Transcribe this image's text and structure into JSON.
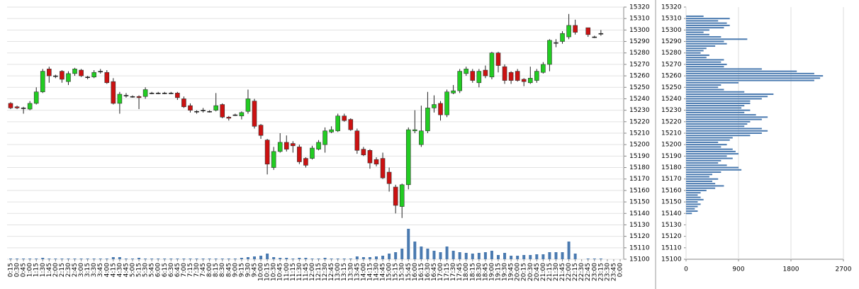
{
  "chart_data": [
    {
      "type": "candlestick",
      "categories": [
        "0:15",
        "0:30",
        "0:45",
        "1:00",
        "1:15",
        "1:30",
        "1:45",
        "2:00",
        "2:15",
        "2:30",
        "2:45",
        "3:00",
        "3:15",
        "3:30",
        "3:45",
        "4:00",
        "4:15",
        "4:30",
        "4:45",
        "5:00",
        "5:15",
        "5:30",
        "5:45",
        "6:00",
        "6:15",
        "6:30",
        "6:45",
        "7:00",
        "7:15",
        "7:30",
        "7:45",
        "8:00",
        "8:15",
        "8:30",
        "8:45",
        "9:00",
        "9:15",
        "9:30",
        "9:45",
        "10:00",
        "10:15",
        "10:30",
        "10:45",
        "11:00",
        "11:15",
        "11:30",
        "11:45",
        "12:00",
        "12:15",
        "12:30",
        "12:45",
        "13:00",
        "13:15",
        "13:30",
        "13:45",
        "14:00",
        "14:15",
        "14:30",
        "14:45",
        "15:00",
        "15:15",
        "15:30",
        "15:45",
        "16:00",
        "16:15",
        "16:30",
        "16:45",
        "17:00",
        "17:15",
        "17:30",
        "17:45",
        "18:00",
        "18:15",
        "18:30",
        "18:45",
        "19:00",
        "19:15",
        "19:30",
        "19:45",
        "20:00",
        "20:15",
        "20:30",
        "20:45",
        "21:00",
        "21:15",
        "21:30",
        "21:45",
        "22:00",
        "22:15",
        "22:30",
        "22:45",
        "23:00",
        "23:15",
        "23:30",
        "23:45",
        "0:00"
      ],
      "open": [
        15236,
        15233,
        15232,
        15231,
        15236,
        15246,
        15266,
        15260,
        15264,
        15255,
        15262,
        15265,
        15259,
        15259,
        15264,
        15263,
        15255,
        15236,
        15243,
        15242,
        15242,
        15242,
        15245,
        15245,
        15245,
        15245,
        15245,
        15240,
        15234,
        15229,
        15230,
        15229,
        15230,
        15235,
        15224,
        15226,
        15225,
        15229,
        15238,
        15217,
        15204,
        15180,
        15194,
        15202,
        15201,
        15198,
        15188,
        15188,
        15196,
        15200,
        15211,
        15212,
        15225,
        15222,
        15212,
        15196,
        15195,
        15187,
        15188,
        15176,
        15163,
        15146,
        15165,
        15212,
        15200,
        15212,
        15232,
        15236,
        15226,
        15245,
        15247,
        15262,
        15264,
        15254,
        15265,
        15259,
        15280,
        15268,
        15263,
        15264,
        15257,
        15254,
        15256,
        15263,
        15270,
        15289,
        15290,
        15294,
        15304,
        null,
        15302,
        15294,
        15297,
        null,
        null,
        null
      ],
      "high": [
        15237,
        15234,
        15233,
        15238,
        15250,
        15266,
        15268,
        15261,
        15265,
        15264,
        15267,
        15266,
        15260,
        15265,
        15266,
        15265,
        15258,
        15246,
        15245,
        15243,
        15243,
        15250,
        15246,
        15246,
        15246,
        15246,
        15246,
        15242,
        15236,
        15230,
        15232,
        15230,
        15245,
        15236,
        15225,
        15227,
        15229,
        15248,
        15240,
        15218,
        15205,
        15198,
        15210,
        15208,
        15203,
        15200,
        15189,
        15199,
        15204,
        15215,
        15216,
        15227,
        15227,
        15223,
        15214,
        15198,
        15196,
        15189,
        15193,
        15180,
        15165,
        15166,
        15215,
        15230,
        15234,
        15246,
        15243,
        15238,
        15248,
        15252,
        15266,
        15268,
        15266,
        15266,
        15269,
        15281,
        15281,
        15270,
        15264,
        15266,
        15258,
        15268,
        15266,
        15272,
        15292,
        15292,
        15299,
        15314,
        15309,
        null,
        15302,
        15295,
        15300,
        null,
        null,
        null
      ],
      "low": [
        15231,
        15231,
        15227,
        15230,
        15235,
        15245,
        15254,
        15258,
        15254,
        15252,
        15260,
        15259,
        15257,
        15258,
        15262,
        15253,
        15235,
        15227,
        15241,
        15241,
        15231,
        15240,
        15244,
        15244,
        15244,
        15244,
        15239,
        15232,
        15228,
        15227,
        15228,
        15228,
        15229,
        15223,
        15221,
        15225,
        15222,
        15227,
        15214,
        15205,
        15174,
        15178,
        15193,
        15194,
        15193,
        15183,
        15180,
        15187,
        15195,
        15193,
        15210,
        15211,
        15220,
        15212,
        15192,
        15190,
        15179,
        15181,
        15170,
        15159,
        15140,
        15136,
        15161,
        15210,
        15198,
        15210,
        15228,
        15221,
        15224,
        15244,
        15245,
        15260,
        15254,
        15250,
        15258,
        15257,
        15263,
        15253,
        15253,
        15255,
        15251,
        15253,
        15254,
        15262,
        15264,
        15285,
        15288,
        15292,
        15296,
        null,
        15294,
        15293,
        15295,
        null,
        null,
        null
      ],
      "close": [
        15232,
        15232,
        15232,
        15236,
        15246,
        15264,
        15260,
        15260,
        15257,
        15262,
        15266,
        15260,
        15259,
        15263,
        15264,
        15254,
        15236,
        15244,
        15243,
        15242,
        15241,
        15248,
        15245,
        15245,
        15245,
        15245,
        15241,
        15233,
        15230,
        15229,
        15230,
        15229,
        15234,
        15224,
        15223,
        15226,
        15228,
        15240,
        15216,
        15208,
        15183,
        15194,
        15202,
        15196,
        15199,
        15185,
        15182,
        15197,
        15202,
        15212,
        15213,
        15225,
        15221,
        15213,
        15195,
        15191,
        15184,
        15183,
        15171,
        15166,
        15147,
        15165,
        15213,
        15213,
        15212,
        15232,
        15235,
        15226,
        15246,
        15247,
        15264,
        15266,
        15256,
        15264,
        15260,
        15280,
        15269,
        15256,
        15256,
        15256,
        15255,
        15258,
        15264,
        15270,
        15291,
        15289,
        15297,
        15304,
        15298,
        null,
        15296,
        15294,
        15297,
        null,
        null,
        null
      ],
      "volume": [
        1,
        1,
        1,
        1,
        1,
        2,
        1,
        1,
        1,
        1,
        1,
        1,
        1,
        1,
        1,
        1,
        3,
        3,
        1,
        1,
        2,
        1,
        1,
        1,
        1,
        1,
        1,
        1,
        1,
        1,
        1,
        1,
        1,
        1,
        1,
        1,
        2,
        3,
        4,
        5,
        8,
        3,
        2,
        2,
        1,
        2,
        2,
        1,
        1,
        2,
        1,
        1,
        1,
        1,
        4,
        3,
        3,
        4,
        5,
        8,
        10,
        15,
        43,
        25,
        18,
        15,
        12,
        10,
        18,
        12,
        10,
        9,
        8,
        9,
        10,
        12,
        6,
        9,
        5,
        5,
        6,
        6,
        7,
        7,
        10,
        10,
        10,
        25,
        8,
        null,
        1,
        1,
        1,
        null,
        null,
        null
      ],
      "up_color": "#22cc22",
      "down_color": "#cc1111",
      "volume_color": "#4a7ab0",
      "ylim": [
        15100,
        15320
      ],
      "yticks": [
        15100,
        15110,
        15120,
        15130,
        15140,
        15150,
        15160,
        15170,
        15180,
        15190,
        15200,
        15210,
        15220,
        15230,
        15240,
        15250,
        15260,
        15270,
        15280,
        15290,
        15300,
        15310,
        15320
      ],
      "grid": true
    },
    {
      "type": "barh",
      "prices": [
        15312,
        15310,
        15308,
        15306,
        15304,
        15302,
        15300,
        15298,
        15296,
        15294,
        15292,
        15290,
        15288,
        15286,
        15284,
        15282,
        15280,
        15278,
        15276,
        15274,
        15272,
        15270,
        15268,
        15266,
        15264,
        15262,
        15260,
        15258,
        15256,
        15254,
        15252,
        15250,
        15248,
        15246,
        15244,
        15242,
        15240,
        15238,
        15236,
        15234,
        15232,
        15230,
        15228,
        15226,
        15224,
        15222,
        15220,
        15218,
        15216,
        15214,
        15212,
        15210,
        15208,
        15206,
        15204,
        15202,
        15200,
        15198,
        15196,
        15194,
        15192,
        15190,
        15188,
        15186,
        15184,
        15182,
        15180,
        15178,
        15176,
        15174,
        15172,
        15170,
        15168,
        15166,
        15164,
        15162,
        15160,
        15158,
        15156,
        15154,
        15152,
        15150,
        15148,
        15146,
        15144,
        15142,
        15140
      ],
      "values": [
        300,
        750,
        550,
        700,
        750,
        650,
        400,
        300,
        400,
        600,
        1050,
        650,
        700,
        500,
        350,
        300,
        250,
        400,
        350,
        650,
        600,
        700,
        650,
        1300,
        1900,
        2200,
        2350,
        2300,
        2200,
        900,
        600,
        550,
        650,
        1000,
        1500,
        1400,
        1300,
        1100,
        1100,
        1000,
        950,
        1100,
        1000,
        1200,
        1400,
        1300,
        1100,
        1050,
        1000,
        1300,
        1400,
        1300,
        1100,
        800,
        750,
        550,
        700,
        600,
        800,
        850,
        900,
        700,
        800,
        600,
        550,
        700,
        900,
        950,
        600,
        450,
        400,
        550,
        450,
        500,
        650,
        500,
        350,
        250,
        200,
        250,
        300,
        200,
        250,
        200,
        150,
        200,
        100
      ],
      "color": "#4a7ab0",
      "xlim": [
        0,
        2700
      ],
      "xticks": [
        0,
        900,
        1800,
        2700
      ],
      "ylim": [
        15100,
        15320
      ],
      "yticks": [
        15100,
        15110,
        15120,
        15130,
        15140,
        15150,
        15160,
        15170,
        15180,
        15190,
        15200,
        15210,
        15220,
        15230,
        15240,
        15250,
        15260,
        15270,
        15280,
        15290,
        15300,
        15310,
        15320
      ],
      "grid": true
    }
  ]
}
